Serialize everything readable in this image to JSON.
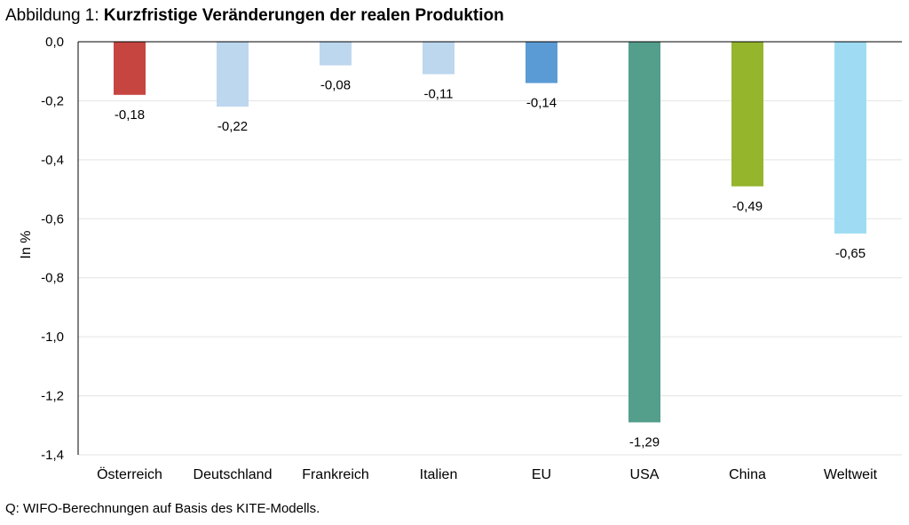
{
  "title": {
    "prefix": "Abbildung 1: ",
    "main": "Kurzfristige Veränderungen der realen Produktion"
  },
  "source": "Q: WIFO-Berechnungen auf Basis des KITE-Modells.",
  "chart_data": {
    "type": "bar",
    "categories": [
      "Österreich",
      "Deutschland",
      "Frankreich",
      "Italien",
      "EU",
      "USA",
      "China",
      "Weltweit"
    ],
    "values": [
      -0.18,
      -0.22,
      -0.08,
      -0.11,
      -0.14,
      -1.29,
      -0.49,
      -0.65
    ],
    "value_labels": [
      "-0,18",
      "-0,22",
      "-0,08",
      "-0,11",
      "-0,14",
      "-1,29",
      "-0,49",
      "-0,65"
    ],
    "colors": [
      "#c64541",
      "#bdd7ee",
      "#bdd7ee",
      "#bdd7ee",
      "#5b9bd5",
      "#549e8c",
      "#94b52c",
      "#9fdcf3"
    ],
    "ylabel": "In %",
    "xlabel": "",
    "ylim": [
      -1.4,
      0.0
    ],
    "yticks": [
      0.0,
      -0.2,
      -0.4,
      -0.6,
      -0.8,
      -1.0,
      -1.2,
      -1.4
    ],
    "ytick_labels": [
      "0,0",
      "-0,2",
      "-0,4",
      "-0,6",
      "-0,8",
      "-1,0",
      "-1,2",
      "-1,4"
    ],
    "grid": true,
    "legend": false
  }
}
